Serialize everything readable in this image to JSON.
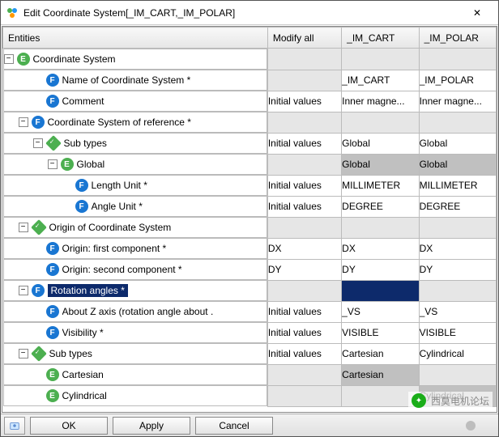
{
  "window": {
    "title": "Edit Coordinate System[_IM_CART,_IM_POLAR]",
    "close_glyph": "✕"
  },
  "columns": {
    "entities": "Entities",
    "modify": "Modify all",
    "c1": "_IM_CART",
    "c2": "_IM_POLAR"
  },
  "rows": [
    {
      "indent": 0,
      "toggle": "-",
      "icon": "E",
      "label": "Coordinate System",
      "mod": "",
      "mod_ro": true,
      "c1": "",
      "c1_ro": true,
      "c2": "",
      "c2_ro": true
    },
    {
      "indent": 2,
      "toggle": "",
      "icon": "F",
      "label": "Name of Coordinate System *",
      "mod": "",
      "mod_ro": true,
      "c1": "_IM_CART",
      "c2": "_IM_POLAR"
    },
    {
      "indent": 2,
      "toggle": "",
      "icon": "F",
      "label": "Comment",
      "mod": "Initial values",
      "c1": "Inner magne...",
      "c2": "Inner magne..."
    },
    {
      "indent": 1,
      "toggle": "-",
      "icon": "F",
      "label": "Coordinate System of reference *",
      "mod": "",
      "mod_ro": true,
      "c1": "",
      "c1_ro": true,
      "c2": "",
      "c2_ro": true
    },
    {
      "indent": 2,
      "toggle": "-",
      "icon": "D",
      "label": "Sub types",
      "mod": "Initial values",
      "c1": "Global",
      "c2": "Global"
    },
    {
      "indent": 3,
      "toggle": "-",
      "icon": "E",
      "label": "Global",
      "mod": "",
      "mod_ro": true,
      "c1": "Global",
      "c1_sel": "gray",
      "c2": "Global",
      "c2_sel": "gray"
    },
    {
      "indent": 4,
      "toggle": "",
      "icon": "F",
      "label": "Length Unit *",
      "mod": "Initial values",
      "c1": "MILLIMETER",
      "c2": "MILLIMETER"
    },
    {
      "indent": 4,
      "toggle": "",
      "icon": "F",
      "label": "Angle Unit *",
      "mod": "Initial values",
      "c1": "DEGREE",
      "c2": "DEGREE"
    },
    {
      "indent": 1,
      "toggle": "-",
      "icon": "D",
      "label": "Origin of Coordinate System",
      "mod": "",
      "mod_ro": true,
      "c1": "",
      "c1_ro": true,
      "c2": "",
      "c2_ro": true
    },
    {
      "indent": 2,
      "toggle": "",
      "icon": "F",
      "label": "Origin: first component *",
      "mod": "DX",
      "c1": "DX",
      "c2": "DX"
    },
    {
      "indent": 2,
      "toggle": "",
      "icon": "F",
      "label": "Origin: second component *",
      "mod": "DY",
      "c1": "DY",
      "c2": "DY"
    },
    {
      "indent": 1,
      "toggle": "-",
      "icon": "F",
      "label": "Rotation angles *",
      "selected": true,
      "mod": "",
      "mod_ro": true,
      "c1": "",
      "c1_sel": "dark",
      "c2": "",
      "c2_ro": true
    },
    {
      "indent": 2,
      "toggle": "",
      "icon": "F",
      "label": "About Z axis (rotation angle about .",
      "mod": "Initial values",
      "c1": "_VS",
      "c2": "_VS"
    },
    {
      "indent": 2,
      "toggle": "",
      "icon": "F",
      "label": "Visibility *",
      "mod": "Initial values",
      "c1": "VISIBLE",
      "c2": "VISIBLE"
    },
    {
      "indent": 1,
      "toggle": "-",
      "icon": "D",
      "label": "Sub types",
      "mod": "Initial values",
      "c1": "Cartesian",
      "c2": "Cylindrical"
    },
    {
      "indent": 2,
      "toggle": "",
      "icon": "E",
      "label": "Cartesian",
      "mod": "",
      "mod_ro": true,
      "c1": "Cartesian",
      "c1_sel": "gray",
      "c2": "",
      "c2_ro": true
    },
    {
      "indent": 2,
      "toggle": "",
      "icon": "E",
      "label": "Cylindrical",
      "mod": "",
      "mod_ro": true,
      "c1": "",
      "c1_ro": true,
      "c2": "Cylindrical",
      "c2_sel": "gray"
    }
  ],
  "footer": {
    "ok": "OK",
    "apply": "Apply",
    "cancel": "Cancel"
  },
  "watermark": "西莫电机论坛"
}
